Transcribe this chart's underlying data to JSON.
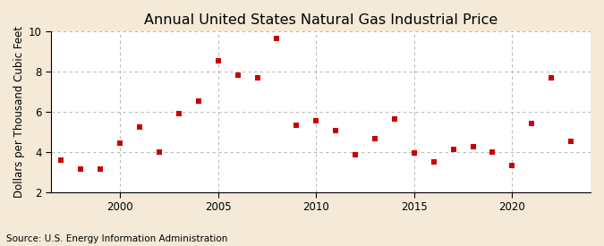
{
  "title": "Annual United States Natural Gas Industrial Price",
  "ylabel": "Dollars per Thousand Cubic Feet",
  "source": "Source: U.S. Energy Information Administration",
  "years": [
    1997,
    1998,
    1999,
    2000,
    2001,
    2002,
    2003,
    2004,
    2005,
    2006,
    2007,
    2008,
    2009,
    2010,
    2011,
    2012,
    2013,
    2014,
    2015,
    2016,
    2017,
    2018,
    2019,
    2020,
    2021,
    2022,
    2023
  ],
  "values": [
    3.59,
    3.12,
    3.12,
    4.43,
    5.24,
    4.0,
    5.93,
    6.52,
    8.53,
    7.85,
    7.68,
    9.65,
    5.31,
    5.54,
    5.05,
    3.85,
    4.64,
    5.62,
    3.93,
    3.52,
    4.13,
    4.24,
    3.97,
    3.3,
    5.42,
    7.69,
    4.53
  ],
  "marker_color": "#cc0000",
  "marker": "s",
  "marker_size": 18,
  "bg_color": "#f5ead8",
  "plot_bg_color": "#ffffff",
  "grid_color": "#aaaaaa",
  "ylim": [
    2,
    10
  ],
  "yticks": [
    2,
    4,
    6,
    8,
    10
  ],
  "xlim": [
    1996.5,
    2024
  ],
  "xticks": [
    2000,
    2005,
    2010,
    2015,
    2020
  ],
  "title_fontsize": 11.5,
  "ylabel_fontsize": 8.5,
  "source_fontsize": 7.5,
  "tick_fontsize": 8.5,
  "vgrid_years": [
    2000,
    2005,
    2010,
    2015,
    2020
  ]
}
